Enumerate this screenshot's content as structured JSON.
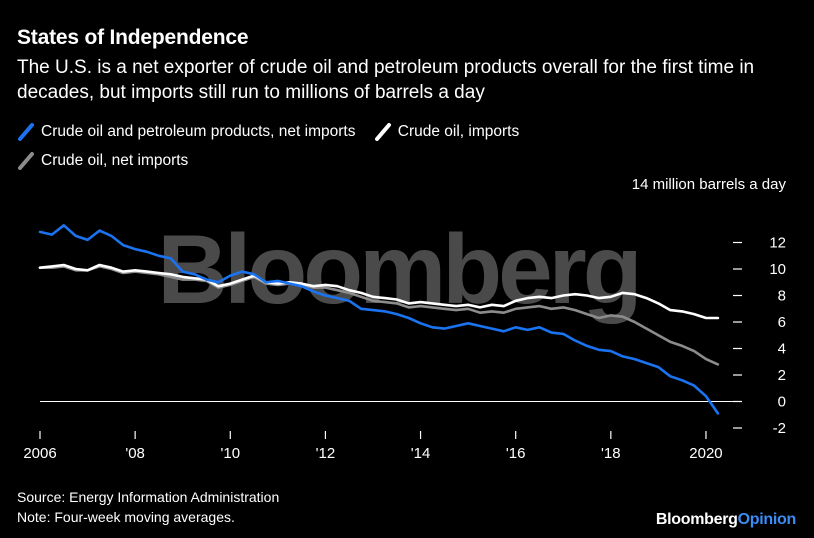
{
  "title": "States of Independence",
  "subtitle": "The U.S. is a net exporter of crude oil and petroleum products overall for the first time in decades, but imports still run to millions of barrels a day",
  "source": "Source: Energy Information Administration",
  "note": "Note: Four-week moving averages.",
  "watermark": "Bloomberg",
  "brand": {
    "main": "Bloomberg",
    "accent": "Opinion"
  },
  "colors": {
    "background": "#000000",
    "net_products": "#1a73f0",
    "crude_imports": "#ffffff",
    "crude_net": "#8c8c8c",
    "watermark": "#4a4a4a",
    "zero_line": "#ffffff"
  },
  "chart_data": {
    "type": "line",
    "title": "States of Independence",
    "unit_label": "14 million barrels a day",
    "xlabel": "",
    "ylabel": "million barrels a day",
    "xlim": [
      2006.0,
      2020.4
    ],
    "ylim": [
      -2,
      14
    ],
    "yticks": [
      12,
      10,
      8,
      6,
      4,
      2,
      0,
      -2
    ],
    "xticks": [
      {
        "value": 2006,
        "label": "2006"
      },
      {
        "value": 2008,
        "label": "'08"
      },
      {
        "value": 2010,
        "label": "'10"
      },
      {
        "value": 2012,
        "label": "'12"
      },
      {
        "value": 2014,
        "label": "'14"
      },
      {
        "value": 2016,
        "label": "'16"
      },
      {
        "value": 2018,
        "label": "'18"
      },
      {
        "value": 2020,
        "label": "2020"
      }
    ],
    "x": [
      2006.0,
      2006.25,
      2006.5,
      2006.75,
      2007.0,
      2007.25,
      2007.5,
      2007.75,
      2008.0,
      2008.25,
      2008.5,
      2008.75,
      2009.0,
      2009.25,
      2009.5,
      2009.75,
      2010.0,
      2010.25,
      2010.5,
      2010.75,
      2011.0,
      2011.25,
      2011.5,
      2011.75,
      2012.0,
      2012.25,
      2012.5,
      2012.75,
      2013.0,
      2013.25,
      2013.5,
      2013.75,
      2014.0,
      2014.25,
      2014.5,
      2014.75,
      2015.0,
      2015.25,
      2015.5,
      2015.75,
      2016.0,
      2016.25,
      2016.5,
      2016.75,
      2017.0,
      2017.25,
      2017.5,
      2017.75,
      2018.0,
      2018.25,
      2018.5,
      2018.75,
      2019.0,
      2019.25,
      2019.5,
      2019.75,
      2020.0,
      2020.25
    ],
    "series": [
      {
        "name": "Crude oil and petroleum products, net imports",
        "color": "#1a73f0",
        "values": [
          12.8,
          12.6,
          13.3,
          12.5,
          12.2,
          12.9,
          12.5,
          11.8,
          11.5,
          11.3,
          11.0,
          10.8,
          9.8,
          9.6,
          9.2,
          9.0,
          9.5,
          9.8,
          9.6,
          9.0,
          9.1,
          8.9,
          8.7,
          8.3,
          8.0,
          7.8,
          7.6,
          7.0,
          6.9,
          6.8,
          6.6,
          6.3,
          5.9,
          5.6,
          5.5,
          5.7,
          5.9,
          5.7,
          5.5,
          5.3,
          5.6,
          5.4,
          5.6,
          5.2,
          5.1,
          4.6,
          4.2,
          3.9,
          3.8,
          3.4,
          3.2,
          2.9,
          2.6,
          1.9,
          1.6,
          1.2,
          0.4,
          -0.9
        ]
      },
      {
        "name": "Crude oil, imports",
        "color": "#ffffff",
        "values": [
          10.1,
          10.2,
          10.3,
          10.0,
          9.9,
          10.3,
          10.1,
          9.8,
          9.9,
          9.8,
          9.7,
          9.6,
          9.4,
          9.3,
          9.2,
          8.7,
          8.9,
          9.2,
          9.5,
          9.0,
          8.9,
          9.0,
          8.9,
          8.7,
          8.8,
          8.7,
          8.4,
          8.2,
          7.9,
          7.8,
          7.7,
          7.4,
          7.5,
          7.4,
          7.3,
          7.2,
          7.3,
          7.1,
          7.3,
          7.2,
          7.6,
          7.8,
          7.9,
          7.8,
          8.0,
          8.1,
          8.0,
          7.8,
          7.9,
          8.2,
          8.1,
          7.8,
          7.4,
          6.9,
          6.8,
          6.6,
          6.3,
          6.3
        ]
      },
      {
        "name": "Crude oil, net imports",
        "color": "#8c8c8c",
        "values": [
          10.1,
          10.1,
          10.2,
          9.9,
          9.9,
          10.2,
          10.0,
          9.7,
          9.8,
          9.7,
          9.6,
          9.4,
          9.2,
          9.2,
          9.1,
          8.6,
          8.8,
          9.1,
          9.4,
          8.9,
          8.8,
          8.9,
          8.8,
          8.6,
          8.6,
          8.4,
          8.2,
          7.9,
          7.6,
          7.5,
          7.4,
          7.1,
          7.2,
          7.1,
          7.0,
          6.9,
          7.0,
          6.7,
          6.8,
          6.7,
          7.0,
          7.1,
          7.2,
          7.0,
          7.1,
          6.9,
          6.6,
          6.3,
          6.5,
          6.4,
          6.0,
          5.5,
          5.0,
          4.5,
          4.2,
          3.8,
          3.2,
          2.8
        ]
      }
    ]
  }
}
